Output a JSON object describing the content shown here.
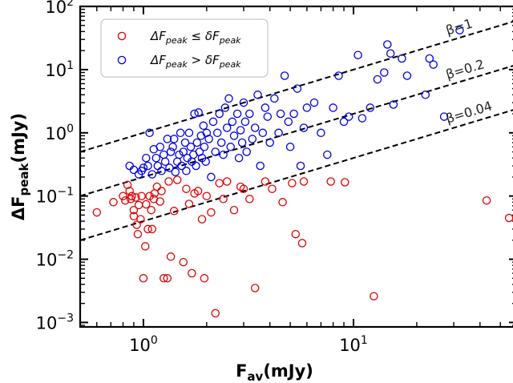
{
  "chart_data": {
    "type": "scatter",
    "xscale": "log",
    "yscale": "log",
    "xlim": [
      0.5,
      60
    ],
    "ylim": [
      0.00085,
      100
    ],
    "xlabel": "F",
    "xlabel_sub": "av",
    "xlabel_unit": "(mJy)",
    "ylabel": "ΔF",
    "ylabel_sub": "peak",
    "ylabel_unit": "(mJy)",
    "x_ticks": [
      {
        "base": "10",
        "exp": "0",
        "value": 1
      },
      {
        "base": "10",
        "exp": "1",
        "value": 10
      }
    ],
    "y_ticks": [
      {
        "base": "10",
        "exp": "−3",
        "value": 0.001
      },
      {
        "base": "10",
        "exp": "−2",
        "value": 0.01
      },
      {
        "base": "10",
        "exp": "−1",
        "value": 0.1
      },
      {
        "base": "10",
        "exp": "0",
        "value": 1
      },
      {
        "base": "10",
        "exp": "1",
        "value": 10
      },
      {
        "base": "10",
        "exp": "2",
        "value": 100
      }
    ],
    "legend": {
      "placement": "top-left",
      "entries": [
        {
          "label_main": "ΔF",
          "label_sub": "peak",
          "op": " ≤ δF",
          "label_sub2": "peak",
          "color": "#e00000"
        },
        {
          "label_main": "ΔF",
          "label_sub": "peak",
          "op": " > δF",
          "label_sub2": "peak",
          "color": "#0000e0"
        }
      ]
    },
    "reference_lines": [
      {
        "label": "β=1",
        "beta": 1
      },
      {
        "label": "β=0.2",
        "beta": 0.2
      },
      {
        "label": "β=0.04",
        "beta": 0.04
      }
    ],
    "series": [
      {
        "color": "#e00000",
        "points": [
          [
            0.6,
            0.055
          ],
          [
            0.72,
            0.08
          ],
          [
            0.8,
            0.1
          ],
          [
            0.82,
            0.085
          ],
          [
            0.84,
            0.15
          ],
          [
            0.86,
            0.12
          ],
          [
            0.87,
            0.09
          ],
          [
            0.88,
            0.1
          ],
          [
            0.9,
            0.06
          ],
          [
            0.9,
            0.048
          ],
          [
            0.92,
            0.095
          ],
          [
            0.93,
            0.035
          ],
          [
            0.94,
            0.025
          ],
          [
            0.95,
            0.072
          ],
          [
            0.97,
            0.043
          ],
          [
            0.98,
            0.1
          ],
          [
            1.0,
            0.005
          ],
          [
            1.02,
            0.016
          ],
          [
            1.03,
            0.074
          ],
          [
            1.05,
            0.03
          ],
          [
            1.07,
            0.1
          ],
          [
            1.09,
            0.06
          ],
          [
            1.1,
            0.03
          ],
          [
            1.12,
            0.09
          ],
          [
            1.13,
            0.11
          ],
          [
            1.16,
            0.14
          ],
          [
            1.2,
            0.082
          ],
          [
            1.22,
            0.12
          ],
          [
            1.25,
            0.005
          ],
          [
            1.3,
            0.005
          ],
          [
            1.32,
            0.17
          ],
          [
            1.35,
            0.011
          ],
          [
            1.4,
            0.058
          ],
          [
            1.45,
            0.18
          ],
          [
            1.55,
            0.009
          ],
          [
            1.6,
            0.13
          ],
          [
            1.65,
            0.075
          ],
          [
            1.7,
            0.006
          ],
          [
            1.75,
            0.11
          ],
          [
            1.82,
            0.12
          ],
          [
            1.9,
            0.043
          ],
          [
            1.95,
            0.005
          ],
          [
            2.0,
            0.1
          ],
          [
            2.1,
            0.055
          ],
          [
            2.2,
            0.0014
          ],
          [
            2.3,
            0.16
          ],
          [
            2.4,
            0.09
          ],
          [
            2.5,
            0.17
          ],
          [
            2.7,
            0.06
          ],
          [
            2.9,
            0.14
          ],
          [
            3.0,
            0.13
          ],
          [
            3.2,
            0.09
          ],
          [
            3.4,
            0.0035
          ],
          [
            3.8,
            0.17
          ],
          [
            4.1,
            0.13
          ],
          [
            4.6,
            0.08
          ],
          [
            5.1,
            0.16
          ],
          [
            5.3,
            0.025
          ],
          [
            5.7,
            0.018
          ],
          [
            5.8,
            0.17
          ],
          [
            7.8,
            0.17
          ],
          [
            9.1,
            0.165
          ],
          [
            12.5,
            0.0026
          ],
          [
            43,
            0.085
          ],
          [
            55,
            0.045
          ]
        ]
      },
      {
        "color": "#0000e0",
        "points": [
          [
            0.86,
            0.3
          ],
          [
            0.9,
            0.26
          ],
          [
            0.95,
            0.22
          ],
          [
            0.98,
            0.25
          ],
          [
            1.0,
            0.28
          ],
          [
            1.03,
            0.4
          ],
          [
            1.05,
            0.3
          ],
          [
            1.07,
            1.0
          ],
          [
            1.1,
            0.22
          ],
          [
            1.12,
            0.55
          ],
          [
            1.15,
            0.4
          ],
          [
            1.17,
            0.3
          ],
          [
            1.2,
            0.6
          ],
          [
            1.22,
            0.25
          ],
          [
            1.25,
            0.45
          ],
          [
            1.27,
            0.35
          ],
          [
            1.3,
            0.8
          ],
          [
            1.33,
            0.28
          ],
          [
            1.35,
            0.5
          ],
          [
            1.38,
            0.6
          ],
          [
            1.4,
            0.8
          ],
          [
            1.42,
            0.24
          ],
          [
            1.45,
            0.35
          ],
          [
            1.48,
            0.45
          ],
          [
            1.5,
            1.0
          ],
          [
            1.52,
            0.3
          ],
          [
            1.55,
            0.5
          ],
          [
            1.58,
            0.7
          ],
          [
            1.6,
            0.25
          ],
          [
            1.62,
            0.4
          ],
          [
            1.65,
            1.0
          ],
          [
            1.68,
            0.6
          ],
          [
            1.7,
            0.35
          ],
          [
            1.73,
            0.45
          ],
          [
            1.75,
            2.0
          ],
          [
            1.78,
            0.3
          ],
          [
            1.8,
            0.7
          ],
          [
            1.83,
            2.1
          ],
          [
            1.85,
            0.5
          ],
          [
            1.88,
            0.9
          ],
          [
            1.9,
            0.4
          ],
          [
            1.93,
            1.3
          ],
          [
            1.95,
            0.6
          ],
          [
            1.98,
            0.35
          ],
          [
            2.0,
            1.0
          ],
          [
            2.05,
            0.8
          ],
          [
            2.1,
            0.2
          ],
          [
            2.15,
            1.5
          ],
          [
            2.2,
            0.5
          ],
          [
            2.25,
            1.0
          ],
          [
            2.3,
            2.0
          ],
          [
            2.35,
            0.7
          ],
          [
            2.4,
            0.45
          ],
          [
            2.45,
            2.5
          ],
          [
            2.5,
            1.2
          ],
          [
            2.55,
            3.5
          ],
          [
            2.6,
            0.6
          ],
          [
            2.65,
            1.5
          ],
          [
            2.7,
            0.9
          ],
          [
            2.8,
            2.0
          ],
          [
            2.85,
            0.4
          ],
          [
            2.9,
            1.1
          ],
          [
            2.95,
            0.7
          ],
          [
            3.0,
            3.0
          ],
          [
            3.05,
            1.5
          ],
          [
            3.1,
            0.5
          ],
          [
            3.2,
            2.0
          ],
          [
            3.3,
            0.8
          ],
          [
            3.4,
            1.2
          ],
          [
            3.5,
            4.0
          ],
          [
            3.6,
            0.3
          ],
          [
            3.7,
            1.0
          ],
          [
            3.8,
            2.5
          ],
          [
            3.9,
            1.8
          ],
          [
            4.0,
            0.7
          ],
          [
            4.2,
            3.5
          ],
          [
            4.4,
            1.0
          ],
          [
            4.5,
            2.0
          ],
          [
            4.7,
            8.0
          ],
          [
            4.9,
            1.5
          ],
          [
            5.0,
            0.6
          ],
          [
            5.2,
            2.0
          ],
          [
            5.4,
            5.0
          ],
          [
            5.6,
            0.3
          ],
          [
            5.8,
            1.2
          ],
          [
            6.0,
            2.5
          ],
          [
            6.5,
            3.0
          ],
          [
            7.0,
            1.0
          ],
          [
            7.5,
            0.45
          ],
          [
            8.0,
            2.5
          ],
          [
            8.5,
            8.0
          ],
          [
            9.0,
            1.5
          ],
          [
            9.5,
            1.8
          ],
          [
            10.5,
            17.0
          ],
          [
            11,
            1.7
          ],
          [
            12,
            2.5
          ],
          [
            13,
            7.0
          ],
          [
            14,
            9.0
          ],
          [
            14.5,
            25
          ],
          [
            15,
            18
          ],
          [
            15.5,
            2.8
          ],
          [
            17,
            15
          ],
          [
            18,
            8
          ],
          [
            22,
            4
          ],
          [
            23,
            15
          ],
          [
            24,
            12
          ],
          [
            27,
            1.8
          ],
          [
            32,
            42
          ]
        ]
      }
    ]
  }
}
